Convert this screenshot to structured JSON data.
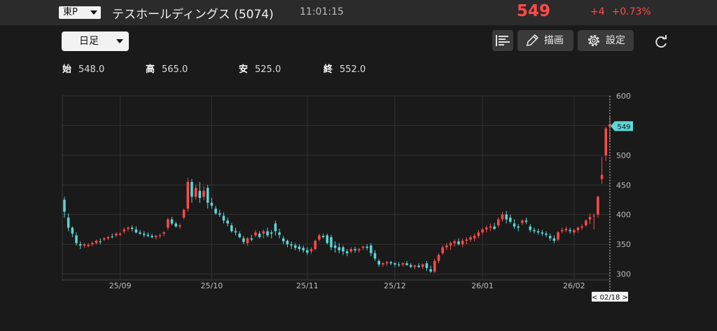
{
  "header": {
    "market": "東P",
    "name": "テスホールディングス (5074)",
    "time": "11:01:15",
    "price": "549",
    "change": "+4",
    "change_pct": "+0.73%"
  },
  "toolbar": {
    "period": "日足",
    "draw_label": "描画",
    "settings_label": "設定"
  },
  "ohlc": {
    "open_label": "始",
    "open": "548.0",
    "high_label": "高",
    "high": "565.0",
    "low_label": "安",
    "low": "525.0",
    "close_label": "終",
    "close": "552.0"
  },
  "colors": {
    "up": "#ff4a4a",
    "down": "#5cd6d6",
    "background": "#1a1a1a"
  },
  "chart_data": {
    "type": "candlestick",
    "ylim": [
      290,
      600
    ],
    "y_ticks": [
      300,
      350,
      400,
      450,
      500,
      550,
      600
    ],
    "x_tick_labels": [
      "25/09",
      "25/10",
      "25/11",
      "25/12",
      "26/01",
      "26/02"
    ],
    "x_tick_index": [
      14,
      37,
      61,
      83,
      105,
      128
    ],
    "last_price_label": "549",
    "cursor_date_label": "< 02/18 >",
    "candles": [
      [
        425,
        430,
        395,
        405
      ],
      [
        395,
        402,
        372,
        378
      ],
      [
        378,
        380,
        362,
        368
      ],
      [
        365,
        370,
        348,
        352
      ],
      [
        350,
        355,
        342,
        348
      ],
      [
        348,
        352,
        344,
        350
      ],
      [
        347,
        352,
        345,
        349
      ],
      [
        350,
        355,
        347,
        352
      ],
      [
        352,
        358,
        350,
        356
      ],
      [
        355,
        360,
        350,
        354
      ],
      [
        358,
        362,
        356,
        360
      ],
      [
        360,
        364,
        357,
        362
      ],
      [
        363,
        368,
        360,
        362
      ],
      [
        365,
        370,
        362,
        368
      ],
      [
        366,
        370,
        364,
        368
      ],
      [
        372,
        378,
        368,
        375
      ],
      [
        376,
        380,
        372,
        378
      ],
      [
        378,
        382,
        372,
        376
      ],
      [
        375,
        380,
        368,
        370
      ],
      [
        370,
        374,
        366,
        368
      ],
      [
        368,
        372,
        362,
        366
      ],
      [
        366,
        370,
        362,
        364
      ],
      [
        364,
        368,
        360,
        362
      ],
      [
        362,
        366,
        358,
        364
      ],
      [
        364,
        368,
        360,
        365
      ],
      [
        368,
        372,
        364,
        370
      ],
      [
        378,
        395,
        374,
        392
      ],
      [
        392,
        396,
        382,
        385
      ],
      [
        385,
        388,
        378,
        380
      ],
      [
        380,
        385,
        376,
        382
      ],
      [
        395,
        410,
        392,
        408
      ],
      [
        410,
        462,
        405,
        455
      ],
      [
        455,
        460,
        420,
        430
      ],
      [
        430,
        450,
        425,
        445
      ],
      [
        440,
        455,
        420,
        428
      ],
      [
        430,
        448,
        424,
        440
      ],
      [
        445,
        450,
        410,
        420
      ],
      [
        420,
        428,
        410,
        415
      ],
      [
        410,
        415,
        400,
        402
      ],
      [
        402,
        408,
        396,
        400
      ],
      [
        398,
        404,
        385,
        390
      ],
      [
        390,
        395,
        380,
        385
      ],
      [
        382,
        386,
        370,
        372
      ],
      [
        372,
        378,
        365,
        370
      ],
      [
        368,
        372,
        360,
        362
      ],
      [
        360,
        364,
        350,
        354
      ],
      [
        352,
        362,
        348,
        360
      ],
      [
        360,
        366,
        355,
        358
      ],
      [
        365,
        374,
        362,
        370
      ],
      [
        368,
        372,
        360,
        362
      ],
      [
        368,
        375,
        360,
        372
      ],
      [
        372,
        378,
        362,
        365
      ],
      [
        370,
        374,
        360,
        368
      ],
      [
        385,
        390,
        365,
        372
      ],
      [
        370,
        376,
        360,
        366
      ],
      [
        360,
        364,
        350,
        355
      ],
      [
        356,
        358,
        345,
        350
      ],
      [
        350,
        355,
        342,
        348
      ],
      [
        348,
        352,
        340,
        344
      ],
      [
        346,
        350,
        338,
        342
      ],
      [
        344,
        348,
        336,
        340
      ],
      [
        340,
        345,
        332,
        336
      ],
      [
        338,
        345,
        334,
        342
      ],
      [
        342,
        358,
        340,
        356
      ],
      [
        358,
        368,
        355,
        365
      ],
      [
        364,
        368,
        360,
        362
      ],
      [
        365,
        368,
        350,
        352
      ],
      [
        362,
        366,
        340,
        345
      ],
      [
        348,
        355,
        336,
        344
      ],
      [
        345,
        352,
        335,
        340
      ],
      [
        345,
        348,
        332,
        338
      ],
      [
        338,
        342,
        330,
        335
      ],
      [
        338,
        345,
        335,
        342
      ],
      [
        342,
        346,
        336,
        340
      ],
      [
        340,
        344,
        336,
        342
      ],
      [
        344,
        348,
        340,
        346
      ],
      [
        346,
        350,
        340,
        344
      ],
      [
        348,
        352,
        330,
        335
      ],
      [
        335,
        340,
        322,
        326
      ],
      [
        322,
        325,
        312,
        316
      ],
      [
        316,
        320,
        312,
        318
      ],
      [
        318,
        322,
        314,
        320
      ],
      [
        320,
        322,
        315,
        318
      ],
      [
        318,
        320,
        312,
        316
      ],
      [
        316,
        320,
        312,
        315
      ],
      [
        316,
        320,
        312,
        318
      ],
      [
        318,
        322,
        314,
        315
      ],
      [
        315,
        318,
        310,
        312
      ],
      [
        312,
        316,
        308,
        314
      ],
      [
        314,
        318,
        310,
        312
      ],
      [
        312,
        318,
        308,
        316
      ],
      [
        318,
        322,
        305,
        310
      ],
      [
        308,
        314,
        302,
        304
      ],
      [
        304,
        326,
        302,
        322
      ],
      [
        322,
        335,
        318,
        332
      ],
      [
        335,
        348,
        332,
        345
      ],
      [
        345,
        352,
        340,
        348
      ],
      [
        348,
        355,
        340,
        352
      ],
      [
        352,
        358,
        346,
        355
      ],
      [
        355,
        360,
        348,
        350
      ],
      [
        350,
        360,
        345,
        356
      ],
      [
        356,
        362,
        350,
        358
      ],
      [
        358,
        365,
        354,
        362
      ],
      [
        360,
        368,
        355,
        364
      ],
      [
        364,
        374,
        360,
        370
      ],
      [
        370,
        378,
        366,
        375
      ],
      [
        375,
        382,
        370,
        378
      ],
      [
        378,
        385,
        372,
        380
      ],
      [
        380,
        386,
        374,
        376
      ],
      [
        382,
        395,
        378,
        392
      ],
      [
        392,
        405,
        388,
        400
      ],
      [
        400,
        406,
        385,
        392
      ],
      [
        395,
        400,
        385,
        388
      ],
      [
        385,
        392,
        376,
        380
      ],
      [
        380,
        384,
        372,
        378
      ],
      [
        386,
        392,
        382,
        390
      ],
      [
        390,
        395,
        384,
        388
      ],
      [
        380,
        384,
        370,
        374
      ],
      [
        374,
        378,
        368,
        372
      ],
      [
        372,
        376,
        366,
        370
      ],
      [
        370,
        374,
        364,
        368
      ],
      [
        368,
        372,
        362,
        366
      ],
      [
        364,
        368,
        356,
        360
      ],
      [
        360,
        365,
        352,
        356
      ],
      [
        358,
        372,
        355,
        370
      ],
      [
        372,
        378,
        368,
        374
      ],
      [
        374,
        380,
        370,
        376
      ],
      [
        374,
        378,
        368,
        372
      ],
      [
        370,
        376,
        366,
        374
      ],
      [
        374,
        380,
        370,
        378
      ],
      [
        378,
        384,
        374,
        380
      ],
      [
        382,
        392,
        380,
        390
      ],
      [
        392,
        402,
        384,
        396
      ],
      [
        397,
        402,
        375,
        398
      ],
      [
        400,
        432,
        395,
        430
      ],
      [
        460,
        497,
        452,
        467
      ],
      [
        500,
        548,
        490,
        545
      ],
      [
        548,
        565,
        525,
        552
      ]
    ]
  }
}
